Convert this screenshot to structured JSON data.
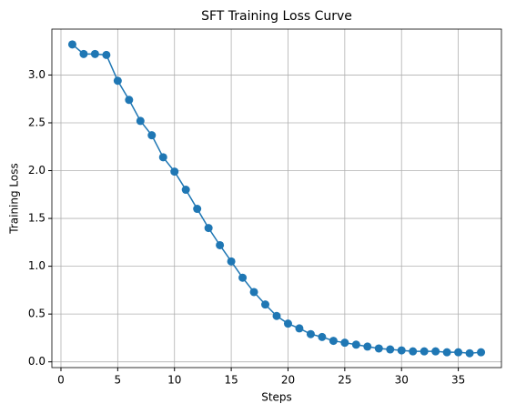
{
  "chart_data": {
    "type": "line",
    "title": "SFT Training Loss Curve",
    "x_label": "Steps",
    "y_label": "Training Loss",
    "x": [
      1,
      2,
      3,
      4,
      5,
      6,
      7,
      8,
      9,
      10,
      11,
      12,
      13,
      14,
      15,
      16,
      17,
      18,
      19,
      20,
      21,
      22,
      23,
      24,
      25,
      26,
      27,
      28,
      29,
      30,
      31,
      32,
      33,
      34,
      35,
      36,
      37
    ],
    "series": [
      {
        "color": "#1f77b4",
        "values": [
          3.32,
          3.22,
          3.22,
          3.21,
          2.94,
          2.74,
          2.52,
          2.37,
          2.14,
          1.99,
          1.8,
          1.6,
          1.4,
          1.22,
          1.05,
          0.88,
          0.73,
          0.6,
          0.48,
          0.4,
          0.35,
          0.29,
          0.26,
          0.22,
          0.2,
          0.18,
          0.16,
          0.14,
          0.13,
          0.12,
          0.11,
          0.11,
          0.11,
          0.1,
          0.1,
          0.09,
          0.1
        ]
      }
    ],
    "xlim": [
      -0.8,
      38.8
    ],
    "xticks": [
      0,
      5,
      10,
      15,
      20,
      25,
      30,
      35
    ],
    "ylim": [
      -0.06,
      3.48
    ],
    "yticks": [
      {
        "value": 0,
        "label": "0.0"
      },
      0.5,
      {
        "value": 1,
        "label": "1.0"
      },
      1.5,
      {
        "value": 2,
        "label": "2.0"
      },
      2.5,
      {
        "value": 3,
        "label": "3.0"
      }
    ],
    "grid": true
  }
}
